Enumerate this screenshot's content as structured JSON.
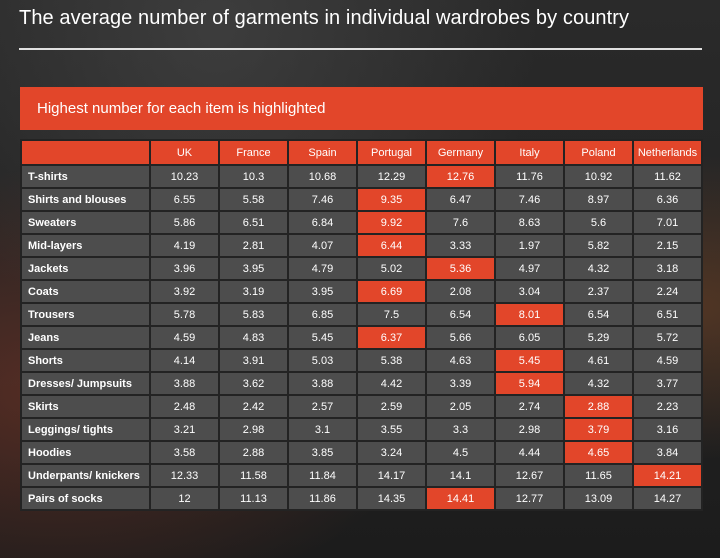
{
  "title": "The average number of garments in individual wardrobes by country",
  "banner": "Highest number for each item is highlighted",
  "colors": {
    "accent": "#e2462a",
    "cell": "#4d4d4d",
    "background": "#232323"
  },
  "chart_data": {
    "type": "table",
    "columns": [
      "UK",
      "France",
      "Spain",
      "Portugal",
      "Germany",
      "Italy",
      "Poland",
      "Netherlands"
    ],
    "rows": [
      {
        "label": "T-shirts",
        "values": [
          "10.23",
          "10.3",
          "10.68",
          "12.29",
          "12.76",
          "11.76",
          "10.92",
          "11.62"
        ],
        "highlight": 4
      },
      {
        "label": "Shirts and blouses",
        "values": [
          "6.55",
          "5.58",
          "7.46",
          "9.35",
          "6.47",
          "7.46",
          "8.97",
          "6.36"
        ],
        "highlight": 3
      },
      {
        "label": "Sweaters",
        "values": [
          "5.86",
          "6.51",
          "6.84",
          "9.92",
          "7.6",
          "8.63",
          "5.6",
          "7.01"
        ],
        "highlight": 3
      },
      {
        "label": "Mid-layers",
        "values": [
          "4.19",
          "2.81",
          "4.07",
          "6.44",
          "3.33",
          "1.97",
          "5.82",
          "2.15"
        ],
        "highlight": 3
      },
      {
        "label": "Jackets",
        "values": [
          "3.96",
          "3.95",
          "4.79",
          "5.02",
          "5.36",
          "4.97",
          "4.32",
          "3.18"
        ],
        "highlight": 4
      },
      {
        "label": "Coats",
        "values": [
          "3.92",
          "3.19",
          "3.95",
          "6.69",
          "2.08",
          "3.04",
          "2.37",
          "2.24"
        ],
        "highlight": 3
      },
      {
        "label": "Trousers",
        "values": [
          "5.78",
          "5.83",
          "6.85",
          "7.5",
          "6.54",
          "8.01",
          "6.54",
          "6.51"
        ],
        "highlight": 5
      },
      {
        "label": "Jeans",
        "values": [
          "4.59",
          "4.83",
          "5.45",
          "6.37",
          "5.66",
          "6.05",
          "5.29",
          "5.72"
        ],
        "highlight": 3
      },
      {
        "label": "Shorts",
        "values": [
          "4.14",
          "3.91",
          "5.03",
          "5.38",
          "4.63",
          "5.45",
          "4.61",
          "4.59"
        ],
        "highlight": 5
      },
      {
        "label": "Dresses/ Jumpsuits",
        "values": [
          "3.88",
          "3.62",
          "3.88",
          "4.42",
          "3.39",
          "5.94",
          "4.32",
          "3.77"
        ],
        "highlight": 5
      },
      {
        "label": "Skirts",
        "values": [
          "2.48",
          "2.42",
          "2.57",
          "2.59",
          "2.05",
          "2.74",
          "2.88",
          "2.23"
        ],
        "highlight": 6
      },
      {
        "label": "Leggings/ tights",
        "values": [
          "3.21",
          "2.98",
          "3.1",
          "3.55",
          "3.3",
          "2.98",
          "3.79",
          "3.16"
        ],
        "highlight": 6
      },
      {
        "label": "Hoodies",
        "values": [
          "3.58",
          "2.88",
          "3.85",
          "3.24",
          "4.5",
          "4.44",
          "4.65",
          "3.84"
        ],
        "highlight": 6
      },
      {
        "label": "Underpants/ knickers",
        "values": [
          "12.33",
          "11.58",
          "11.84",
          "14.17",
          "14.1",
          "12.67",
          "11.65",
          "14.21"
        ],
        "highlight": 7
      },
      {
        "label": "Pairs of socks",
        "values": [
          "12",
          "11.13",
          "11.86",
          "14.35",
          "14.41",
          "12.77",
          "13.09",
          "14.27"
        ],
        "highlight": 4
      }
    ]
  }
}
